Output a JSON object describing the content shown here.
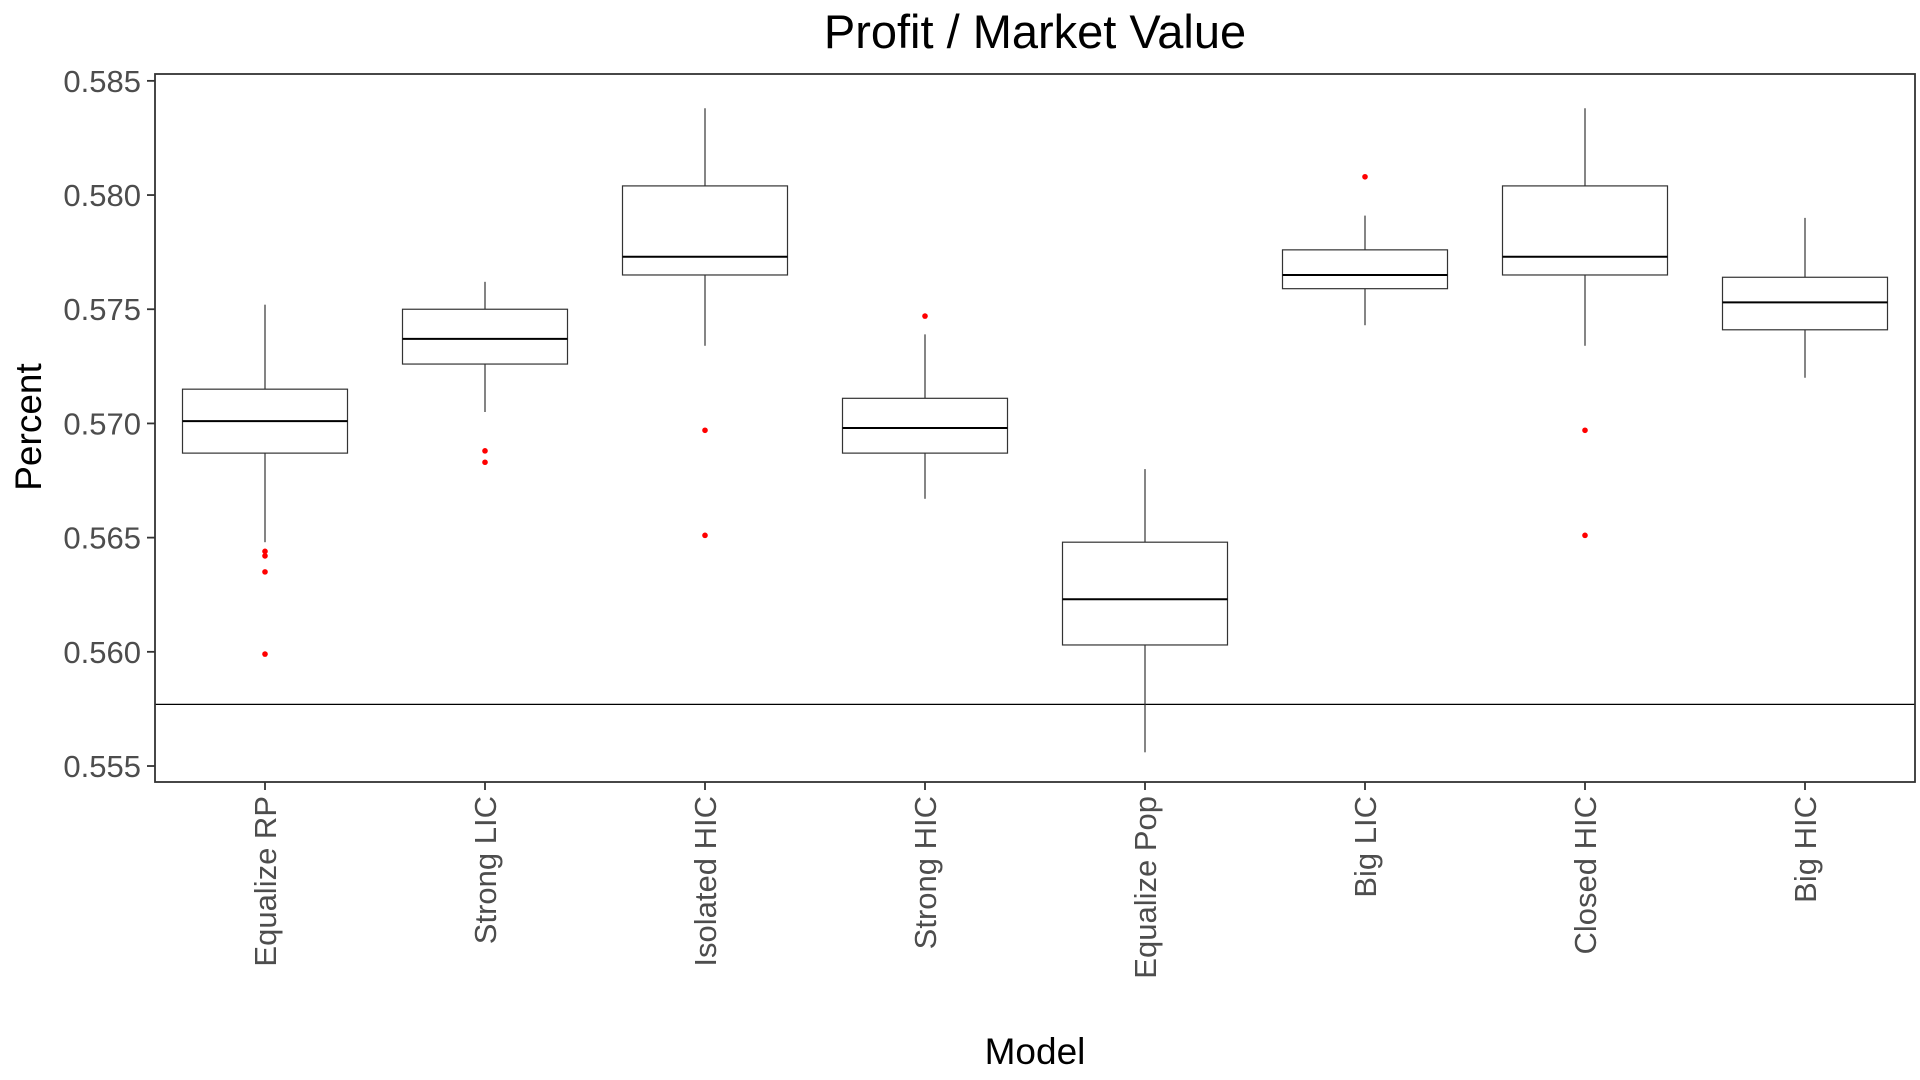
{
  "chart_data": {
    "type": "box",
    "title": "Profit / Market Value",
    "xlabel": "Model",
    "ylabel": "Percent",
    "ylim": [
      0.5543,
      0.5853
    ],
    "yticks": [
      "0.555",
      "0.560",
      "0.565",
      "0.570",
      "0.575",
      "0.580",
      "0.585"
    ],
    "ytick_values": [
      0.555,
      0.56,
      0.565,
      0.57,
      0.575,
      0.58,
      0.585
    ],
    "grid": false,
    "reference_line": {
      "y": 0.5577
    },
    "categories": [
      "Equalize RP",
      "Strong LIC",
      "Isolated HIC",
      "Strong HIC",
      "Equalize Pop",
      "Big LIC",
      "Closed HIC",
      "Big HIC"
    ],
    "boxes": [
      {
        "name": "Equalize RP",
        "whisker_low": 0.5648,
        "q1": 0.5687,
        "median": 0.5701,
        "q3": 0.5715,
        "whisker_high": 0.5752,
        "outliers": [
          0.5644,
          0.5642,
          0.5635,
          0.5599
        ]
      },
      {
        "name": "Strong LIC",
        "whisker_low": 0.5705,
        "q1": 0.5726,
        "median": 0.5737,
        "q3": 0.575,
        "whisker_high": 0.5762,
        "outliers": [
          0.5688,
          0.5683
        ]
      },
      {
        "name": "Isolated HIC",
        "whisker_low": 0.5734,
        "q1": 0.5765,
        "median": 0.5773,
        "q3": 0.5804,
        "whisker_high": 0.5838,
        "outliers": [
          0.5697,
          0.5651
        ]
      },
      {
        "name": "Strong HIC",
        "whisker_low": 0.5667,
        "q1": 0.5687,
        "median": 0.5698,
        "q3": 0.5711,
        "whisker_high": 0.5739,
        "outliers": [
          0.5747
        ]
      },
      {
        "name": "Equalize Pop",
        "whisker_low": 0.5556,
        "q1": 0.5603,
        "median": 0.5623,
        "q3": 0.5648,
        "whisker_high": 0.568,
        "outliers": []
      },
      {
        "name": "Big LIC",
        "whisker_low": 0.5743,
        "q1": 0.5759,
        "median": 0.5765,
        "q3": 0.5776,
        "whisker_high": 0.5791,
        "outliers": [
          0.5808
        ]
      },
      {
        "name": "Closed HIC",
        "whisker_low": 0.5734,
        "q1": 0.5765,
        "median": 0.5773,
        "q3": 0.5804,
        "whisker_high": 0.5838,
        "outliers": [
          0.5697,
          0.5651
        ]
      },
      {
        "name": "Big HIC",
        "whisker_low": 0.572,
        "q1": 0.5741,
        "median": 0.5753,
        "q3": 0.5764,
        "whisker_high": 0.579,
        "outliers": []
      }
    ],
    "colors": {
      "box_stroke": "#333333",
      "median": "#000000",
      "outlier": "#ff0000",
      "panel_border": "#333333",
      "reference_line": "#000000",
      "tick_label": "#4d4d4d"
    }
  }
}
